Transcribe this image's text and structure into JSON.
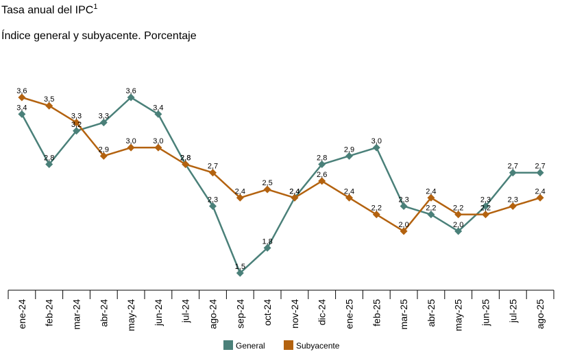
{
  "chart_data": {
    "type": "line",
    "title": "Tasa anual del IPC",
    "title_superscript": "1",
    "subtitle": "Índice general y subyacente. Porcentaje",
    "xlabel": "",
    "ylabel": "",
    "ylim": [
      1.4,
      3.7
    ],
    "categories": [
      "ene-24",
      "feb-24",
      "mar-24",
      "abr-24",
      "may-24",
      "jun-24",
      "jul-24",
      "ago-24",
      "sep-24",
      "oct-24",
      "nov-24",
      "dic-24",
      "ene-25",
      "feb-25",
      "mar-25",
      "abr-25",
      "may-25",
      "jun-25",
      "jul-25",
      "ago-25"
    ],
    "series": [
      {
        "name": "General",
        "color": "#4a8079",
        "values": [
          3.4,
          2.8,
          3.2,
          3.3,
          3.6,
          3.4,
          2.8,
          2.3,
          1.5,
          1.8,
          2.4,
          2.8,
          2.9,
          3.0,
          2.3,
          2.2,
          2.0,
          2.3,
          2.7,
          2.7
        ],
        "labels": [
          "3,4",
          "2,8",
          "3,2",
          "3,3",
          "3,6",
          "3,4",
          "2,8",
          "2,3",
          "1,5",
          "1,8",
          "2,4",
          "2,8",
          "2,9",
          "3,0",
          "2,3",
          "2,2",
          "2,0",
          "2,3",
          "2,7",
          "2,7"
        ]
      },
      {
        "name": "Subyacente",
        "color": "#b3620f",
        "values": [
          3.6,
          3.5,
          3.3,
          2.9,
          3.0,
          3.0,
          2.8,
          2.7,
          2.4,
          2.5,
          2.4,
          2.6,
          2.4,
          2.2,
          2.0,
          2.4,
          2.2,
          2.2,
          2.3,
          2.4
        ],
        "labels": [
          "3,6",
          "3,5",
          "3,3",
          "2,9",
          "3,0",
          "3,0",
          "2,8",
          "2,7",
          "2,4",
          "2,5",
          "2,4",
          "2,6",
          "2,4",
          "2,2",
          "2,0",
          "2,4",
          "2,2",
          "2,2",
          "2,3",
          "2,4"
        ]
      }
    ],
    "legend": {
      "position": "bottom-center",
      "entries": [
        "General",
        "Subyacente"
      ]
    },
    "grid": false
  }
}
